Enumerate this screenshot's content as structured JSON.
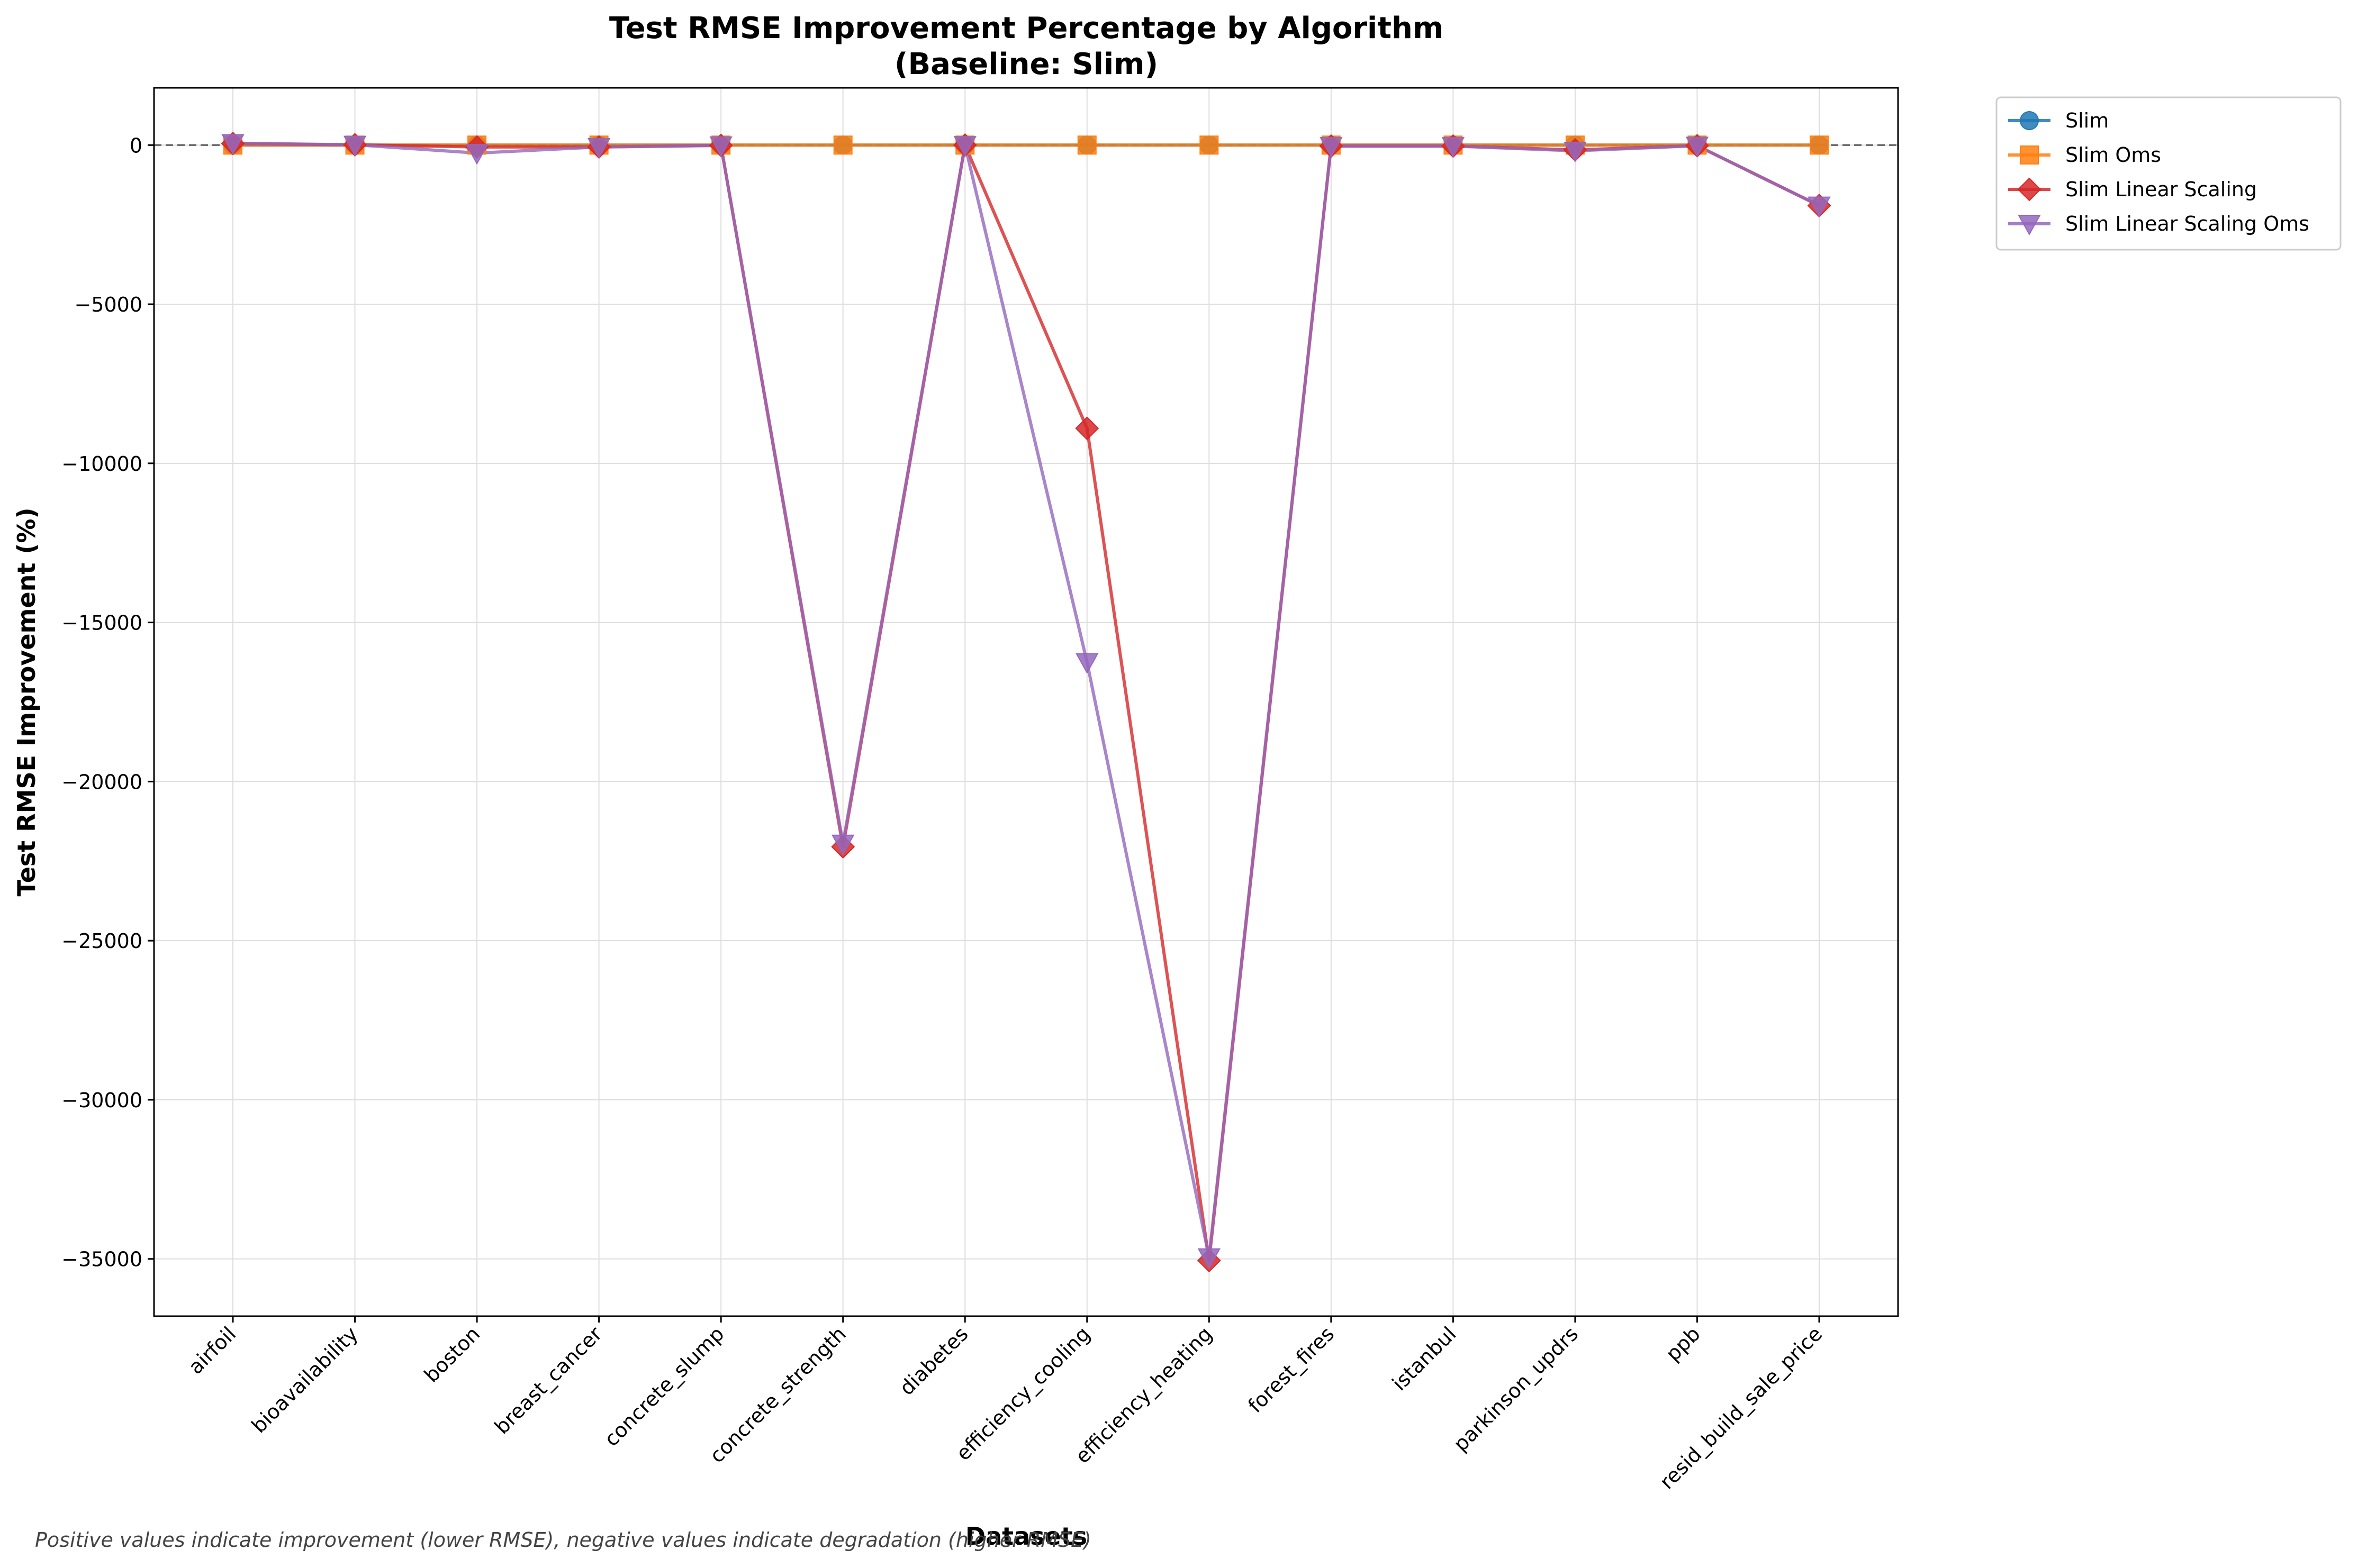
{
  "chart_data": {
    "type": "line",
    "title": "Test RMSE Improvement Percentage by Algorithm",
    "subtitle": "(Baseline: Slim)",
    "xlabel": "Datasets",
    "ylabel": "Test RMSE Improvement (%)",
    "categories": [
      "airfoil",
      "bioavailability",
      "boston",
      "breast_cancer",
      "concrete_slump",
      "concrete_strength",
      "diabetes",
      "efficiency_cooling",
      "efficiency_heating",
      "forest_fires",
      "istanbul",
      "parkinson_updrs",
      "ppb",
      "resid_build_sale_price"
    ],
    "ylim": [
      -36800,
      1800
    ],
    "yticks": [
      0,
      -5000,
      -10000,
      -15000,
      -20000,
      -25000,
      -30000,
      -35000
    ],
    "ytick_labels": [
      "0",
      "−5000",
      "−10000",
      "−15000",
      "−20000",
      "−25000",
      "−30000",
      "−35000"
    ],
    "grid": true,
    "baseline_y": 0,
    "legend_position": "outside top-right",
    "series": [
      {
        "name": "Slim",
        "color": "#1f77b4",
        "marker": "circle",
        "values": [
          0,
          0,
          0,
          0,
          0,
          0,
          0,
          0,
          0,
          0,
          0,
          0,
          0,
          0
        ]
      },
      {
        "name": "Slim Oms",
        "color": "#ff7f0e",
        "marker": "square",
        "values": [
          0,
          0,
          0,
          0,
          0,
          0,
          0,
          0,
          0,
          0,
          0,
          0,
          0,
          0
        ]
      },
      {
        "name": "Slim Linear Scaling",
        "color": "#d62728",
        "marker": "diamond",
        "values": [
          50,
          10,
          -60,
          -60,
          -10,
          -22050,
          0,
          -8900,
          -35050,
          -30,
          -30,
          -150,
          -20,
          -1900
        ]
      },
      {
        "name": "Slim Linear Scaling Oms",
        "color": "#9467bd",
        "marker": "triangle-down",
        "values": [
          60,
          10,
          -250,
          -60,
          -10,
          -21950,
          0,
          -16250,
          -34950,
          -30,
          -30,
          -180,
          -20,
          -1900
        ]
      }
    ],
    "footnote": "Positive values indicate improvement (lower RMSE), negative values indicate degradation (higher RMSE)"
  }
}
